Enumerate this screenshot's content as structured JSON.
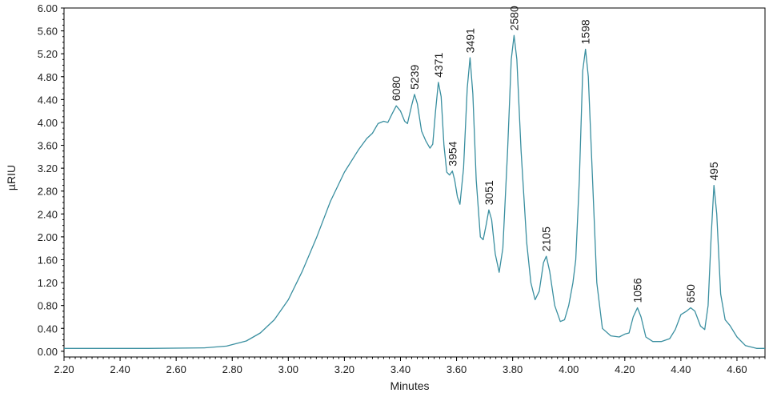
{
  "chart_data": {
    "type": "line",
    "title": "",
    "xlabel": "Minutes",
    "ylabel": "µRIU",
    "xlim": [
      2.2,
      4.7
    ],
    "ylim": [
      -0.1,
      6.0
    ],
    "grid": false,
    "x_ticks": [
      2.2,
      2.4,
      2.6,
      2.8,
      3.0,
      3.2,
      3.4,
      3.6,
      3.8,
      4.0,
      4.2,
      4.4,
      4.6
    ],
    "x_tick_labels": [
      "2.20",
      "2.40",
      "2.60",
      "2.80",
      "3.00",
      "3.20",
      "3.40",
      "3.60",
      "3.80",
      "4.00",
      "4.20",
      "4.40",
      "4.60"
    ],
    "y_ticks": [
      0.0,
      0.4,
      0.8,
      1.2,
      1.6,
      2.0,
      2.4,
      2.8,
      3.2,
      3.6,
      4.0,
      4.4,
      4.8,
      5.2,
      5.6,
      6.0
    ],
    "y_tick_labels": [
      "0.00",
      "0.40",
      "0.80",
      "1.20",
      "1.60",
      "2.00",
      "2.40",
      "2.80",
      "3.20",
      "3.60",
      "4.00",
      "4.40",
      "4.80",
      "5.20",
      "5.60",
      "6.00"
    ],
    "series": [
      {
        "color": "#3a8fa0",
        "points": [
          [
            2.2,
            0.05
          ],
          [
            2.5,
            0.05
          ],
          [
            2.7,
            0.06
          ],
          [
            2.78,
            0.09
          ],
          [
            2.85,
            0.18
          ],
          [
            2.9,
            0.32
          ],
          [
            2.95,
            0.55
          ],
          [
            3.0,
            0.9
          ],
          [
            3.05,
            1.4
          ],
          [
            3.1,
            1.98
          ],
          [
            3.15,
            2.62
          ],
          [
            3.2,
            3.13
          ],
          [
            3.25,
            3.52
          ],
          [
            3.28,
            3.72
          ],
          [
            3.3,
            3.81
          ],
          [
            3.32,
            3.98
          ],
          [
            3.34,
            4.02
          ],
          [
            3.355,
            4.0
          ],
          [
            3.37,
            4.15
          ],
          [
            3.385,
            4.29
          ],
          [
            3.4,
            4.2
          ],
          [
            3.415,
            4.02
          ],
          [
            3.425,
            3.98
          ],
          [
            3.44,
            4.3
          ],
          [
            3.45,
            4.49
          ],
          [
            3.46,
            4.33
          ],
          [
            3.475,
            3.85
          ],
          [
            3.49,
            3.68
          ],
          [
            3.505,
            3.55
          ],
          [
            3.515,
            3.62
          ],
          [
            3.525,
            4.2
          ],
          [
            3.535,
            4.7
          ],
          [
            3.545,
            4.45
          ],
          [
            3.555,
            3.6
          ],
          [
            3.565,
            3.13
          ],
          [
            3.575,
            3.08
          ],
          [
            3.585,
            3.15
          ],
          [
            3.593,
            3.0
          ],
          [
            3.603,
            2.7
          ],
          [
            3.612,
            2.57
          ],
          [
            3.625,
            3.2
          ],
          [
            3.638,
            4.6
          ],
          [
            3.648,
            5.13
          ],
          [
            3.658,
            4.5
          ],
          [
            3.67,
            3.0
          ],
          [
            3.685,
            2.0
          ],
          [
            3.695,
            1.95
          ],
          [
            3.705,
            2.2
          ],
          [
            3.715,
            2.47
          ],
          [
            3.725,
            2.3
          ],
          [
            3.738,
            1.7
          ],
          [
            3.752,
            1.38
          ],
          [
            3.765,
            1.8
          ],
          [
            3.782,
            3.5
          ],
          [
            3.795,
            5.1
          ],
          [
            3.805,
            5.52
          ],
          [
            3.815,
            5.1
          ],
          [
            3.83,
            3.5
          ],
          [
            3.85,
            1.9
          ],
          [
            3.865,
            1.2
          ],
          [
            3.88,
            0.9
          ],
          [
            3.895,
            1.05
          ],
          [
            3.91,
            1.55
          ],
          [
            3.92,
            1.66
          ],
          [
            3.932,
            1.4
          ],
          [
            3.95,
            0.8
          ],
          [
            3.97,
            0.52
          ],
          [
            3.985,
            0.55
          ],
          [
            4.0,
            0.8
          ],
          [
            4.015,
            1.2
          ],
          [
            4.025,
            1.6
          ],
          [
            4.038,
            3.0
          ],
          [
            4.05,
            4.9
          ],
          [
            4.06,
            5.28
          ],
          [
            4.07,
            4.8
          ],
          [
            4.085,
            3.0
          ],
          [
            4.1,
            1.2
          ],
          [
            4.12,
            0.4
          ],
          [
            4.15,
            0.27
          ],
          [
            4.18,
            0.25
          ],
          [
            4.2,
            0.3
          ],
          [
            4.215,
            0.32
          ],
          [
            4.23,
            0.6
          ],
          [
            4.245,
            0.76
          ],
          [
            4.258,
            0.6
          ],
          [
            4.275,
            0.25
          ],
          [
            4.3,
            0.17
          ],
          [
            4.33,
            0.17
          ],
          [
            4.36,
            0.22
          ],
          [
            4.38,
            0.38
          ],
          [
            4.4,
            0.64
          ],
          [
            4.42,
            0.7
          ],
          [
            4.435,
            0.76
          ],
          [
            4.45,
            0.7
          ],
          [
            4.47,
            0.44
          ],
          [
            4.485,
            0.38
          ],
          [
            4.497,
            0.8
          ],
          [
            4.508,
            2.0
          ],
          [
            4.518,
            2.9
          ],
          [
            4.528,
            2.4
          ],
          [
            4.542,
            1.0
          ],
          [
            4.558,
            0.55
          ],
          [
            4.575,
            0.45
          ],
          [
            4.6,
            0.25
          ],
          [
            4.63,
            0.1
          ],
          [
            4.67,
            0.05
          ],
          [
            4.7,
            0.05
          ]
        ]
      }
    ],
    "annotations": [
      {
        "text": "6080",
        "x": 3.385,
        "y": 4.29
      },
      {
        "text": "5239",
        "x": 3.45,
        "y": 4.49
      },
      {
        "text": "4371",
        "x": 3.535,
        "y": 4.7
      },
      {
        "text": "3954",
        "x": 3.585,
        "y": 3.15
      },
      {
        "text": "3491",
        "x": 3.648,
        "y": 5.13
      },
      {
        "text": "3051",
        "x": 3.715,
        "y": 2.47
      },
      {
        "text": "2580",
        "x": 3.805,
        "y": 5.52
      },
      {
        "text": "2105",
        "x": 3.92,
        "y": 1.66
      },
      {
        "text": "1598",
        "x": 4.06,
        "y": 5.28
      },
      {
        "text": "1056",
        "x": 4.245,
        "y": 0.76
      },
      {
        "text": "650",
        "x": 4.435,
        "y": 0.76
      },
      {
        "text": "495",
        "x": 4.518,
        "y": 2.9
      }
    ]
  }
}
